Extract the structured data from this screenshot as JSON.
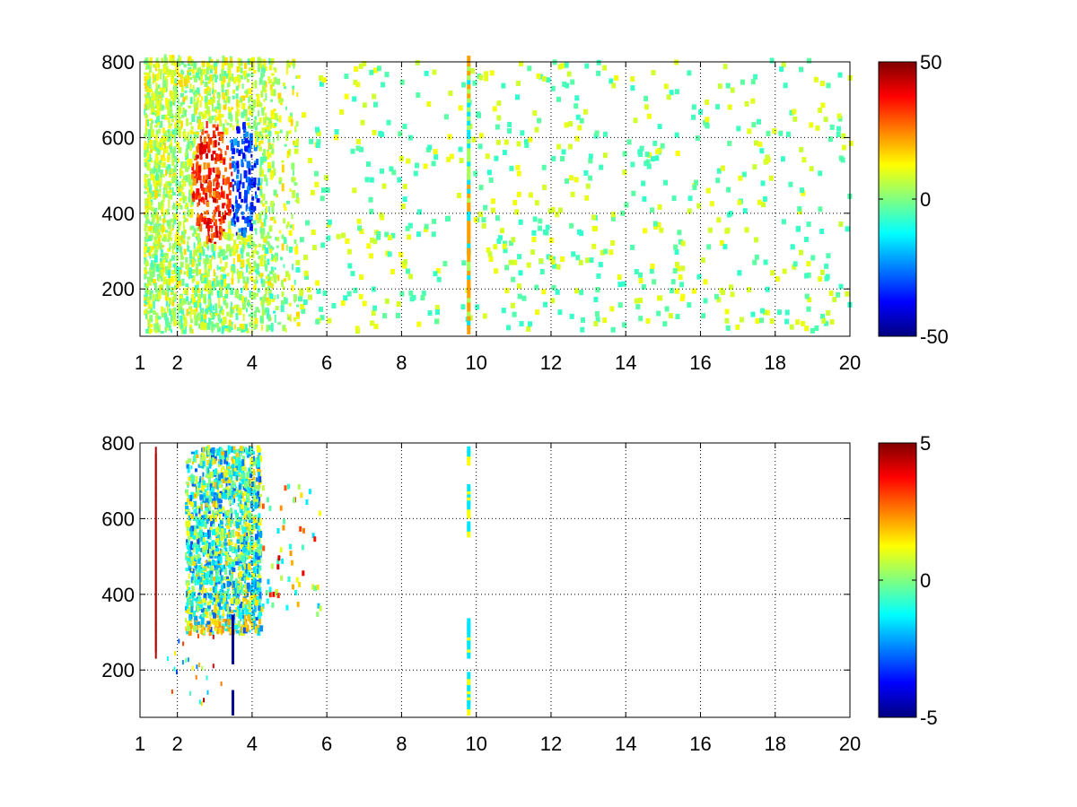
{
  "figure": {
    "background": "#ffffff",
    "colormap": "jet"
  },
  "chart_data": [
    {
      "type": "heatmap",
      "title": "",
      "xlabel": "",
      "ylabel": "",
      "xlim": [
        1,
        20
      ],
      "ylim": [
        75,
        800
      ],
      "x_ticks": [
        1,
        2,
        4,
        6,
        8,
        10,
        12,
        14,
        16,
        18,
        20
      ],
      "y_ticks": [
        200,
        400,
        600,
        800
      ],
      "grid": true,
      "colorbar": {
        "range": [
          -50,
          50
        ],
        "ticks": [
          -50,
          0,
          50
        ],
        "placement": "right"
      },
      "features": [
        {
          "description": "dense speckle band",
          "x_range": [
            1.1,
            5.2
          ],
          "y_range": [
            80,
            800
          ]
        },
        {
          "description": "positive (red/orange) lobe",
          "x_center": 2.9,
          "y_center": 470,
          "approx_value": 35
        },
        {
          "description": "negative (blue) lobe",
          "x_center": 3.7,
          "y_center": 480,
          "approx_value": -35
        },
        {
          "description": "vertical stripe",
          "x": 9.75,
          "y_range": [
            80,
            800
          ]
        },
        {
          "description": "sparse near-zero pixels",
          "x_range": [
            5,
            20
          ],
          "y_range": [
            80,
            800
          ],
          "approx_value": 0
        }
      ]
    },
    {
      "type": "heatmap",
      "title": "",
      "xlabel": "",
      "ylabel": "",
      "xlim": [
        1,
        20
      ],
      "ylim": [
        75,
        800
      ],
      "x_ticks": [
        1,
        2,
        4,
        6,
        8,
        10,
        12,
        14,
        16,
        18,
        20
      ],
      "y_ticks": [
        200,
        400,
        600,
        800
      ],
      "grid": true,
      "colorbar": {
        "range": [
          -5,
          5
        ],
        "ticks": [
          -5,
          0,
          5
        ],
        "placement": "right"
      },
      "features": [
        {
          "description": "speckle cluster",
          "x_range": [
            2.2,
            4.2
          ],
          "y_range": [
            290,
            780
          ],
          "approx_value": -1
        },
        {
          "description": "thin red vertical line",
          "x": 1.4,
          "y_range": [
            230,
            760
          ]
        },
        {
          "description": "dark blue segments",
          "x": 3.45,
          "y_range": [
            80,
            330
          ]
        },
        {
          "description": "short stripe segments",
          "x": 9.75,
          "y_range": [
            80,
            780
          ]
        },
        {
          "description": "isolated pixels",
          "x_range": [
            4.2,
            5.8
          ],
          "y_range": [
            320,
            680
          ]
        }
      ]
    }
  ]
}
